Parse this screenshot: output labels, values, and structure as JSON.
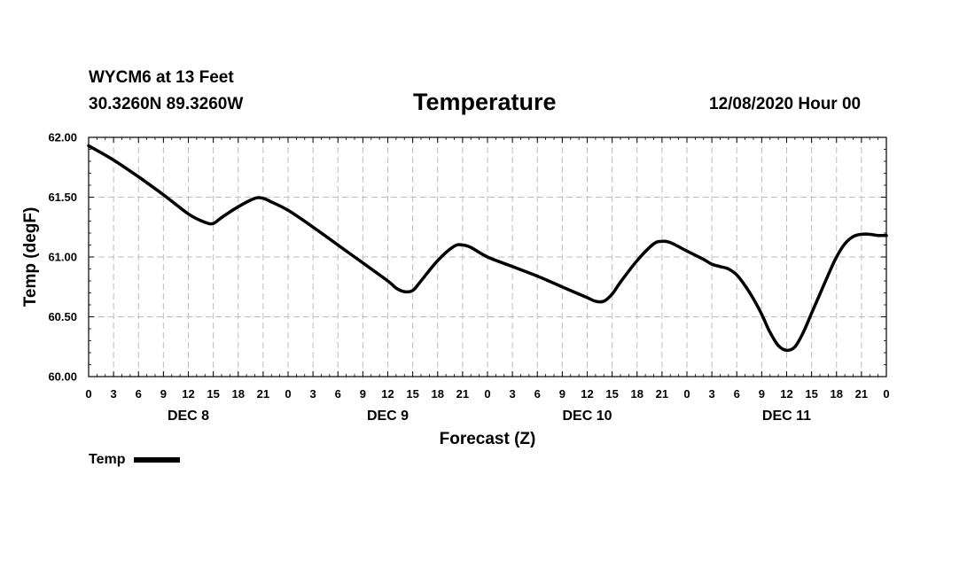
{
  "header": {
    "station": "WYCM6 at 13 Feet",
    "coords": "30.3260N 89.3260W",
    "title": "Temperature",
    "timestamp": "12/08/2020 Hour 00"
  },
  "chart_data": {
    "type": "line",
    "title": "Temperature",
    "xlabel": "Forecast (Z)",
    "ylabel": "Temp (degF)",
    "ylim": [
      60.0,
      62.0
    ],
    "yticks": [
      "60.00",
      "60.50",
      "61.00",
      "61.50",
      "62.00"
    ],
    "xlim_hours": [
      0,
      96
    ],
    "xtick_labels": [
      "0",
      "3",
      "6",
      "9",
      "12",
      "15",
      "18",
      "21",
      "0",
      "3",
      "6",
      "9",
      "12",
      "15",
      "18",
      "21",
      "0",
      "3",
      "6",
      "9",
      "12",
      "15",
      "18",
      "21",
      "0",
      "3",
      "6",
      "9",
      "12",
      "15",
      "18",
      "21",
      "0"
    ],
    "day_labels": [
      {
        "label": "DEC 8",
        "hour": 12
      },
      {
        "label": "DEC 9",
        "hour": 36
      },
      {
        "label": "DEC 10",
        "hour": 60
      },
      {
        "label": "DEC 11",
        "hour": 84
      }
    ],
    "grid": true,
    "legend_position": "bottom-left",
    "series": [
      {
        "name": "Temp",
        "color": "#000000",
        "x": [
          0,
          3,
          6,
          9,
          12,
          14,
          15,
          16,
          18,
          20,
          21,
          22,
          24,
          27,
          30,
          33,
          36,
          37,
          38,
          39,
          40,
          42,
          44,
          45,
          46,
          48,
          51,
          54,
          57,
          60,
          61,
          62,
          63,
          64,
          66,
          68,
          69,
          70,
          72,
          74,
          75,
          76,
          77,
          78,
          79,
          80,
          81,
          82,
          83,
          84,
          85,
          86,
          87,
          88,
          89,
          90,
          91,
          92,
          93,
          94,
          95,
          96
        ],
        "values": [
          61.93,
          61.81,
          61.67,
          61.52,
          61.36,
          61.29,
          61.28,
          61.33,
          61.42,
          61.49,
          61.49,
          61.46,
          61.39,
          61.25,
          61.1,
          60.95,
          60.8,
          60.74,
          60.71,
          60.72,
          60.8,
          60.97,
          61.09,
          61.1,
          61.08,
          61.0,
          60.92,
          60.84,
          60.75,
          60.66,
          60.63,
          60.63,
          60.69,
          60.79,
          60.97,
          61.11,
          61.13,
          61.12,
          61.05,
          60.98,
          60.94,
          60.92,
          60.9,
          60.85,
          60.76,
          60.65,
          60.52,
          60.37,
          60.26,
          60.22,
          60.25,
          60.37,
          60.53,
          60.69,
          60.85,
          61.0,
          61.11,
          61.17,
          61.19,
          61.19,
          61.18,
          61.18
        ]
      }
    ]
  },
  "legend": {
    "label": "Temp"
  }
}
